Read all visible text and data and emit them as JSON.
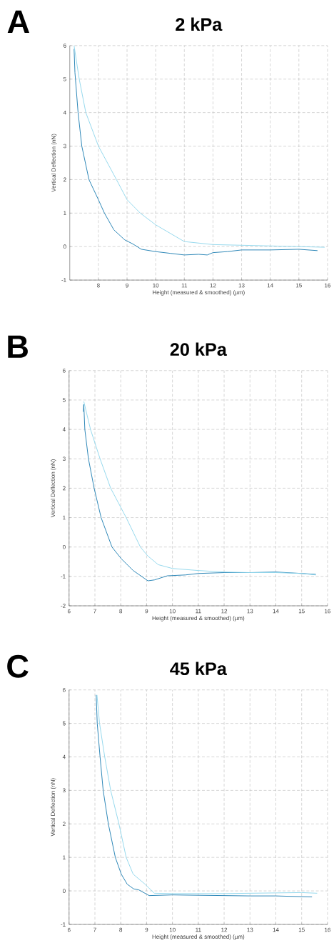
{
  "chart_data": [
    {
      "type": "line",
      "title": "2 kPa",
      "annotations": [
        "A"
      ],
      "xlabel": "Height (measured & smoothed) (µm)",
      "ylabel": "Vertical Deflection (nN)",
      "xlim": [
        7,
        16
      ],
      "xticks": [
        8,
        9,
        10,
        11,
        12,
        13,
        14,
        15,
        16
      ],
      "ylim": [
        -1,
        6
      ],
      "yticks": [
        -1,
        0,
        1,
        2,
        3,
        4,
        5,
        6
      ],
      "grid": true,
      "marker": "none",
      "line_style": "solid",
      "series": [
        {
          "color": "#1f7fb3",
          "x": [
            7.15,
            7.18,
            7.29,
            7.42,
            7.67,
            8.0,
            8.21,
            8.54,
            8.92,
            9.2,
            9.5,
            10.0,
            10.5,
            11.0,
            11.5,
            11.8,
            12.0,
            12.5,
            13.0,
            14.0,
            15.0,
            15.65
          ],
          "values": [
            5.9,
            5.2,
            4.0,
            3.0,
            2.0,
            1.4,
            1.0,
            0.5,
            0.2,
            0.08,
            -0.08,
            -0.15,
            -0.2,
            -0.25,
            -0.23,
            -0.25,
            -0.18,
            -0.15,
            -0.1,
            -0.1,
            -0.08,
            -0.12
          ]
        },
        {
          "color": "#8fd6ec",
          "x": [
            7.15,
            7.33,
            7.56,
            8.0,
            8.63,
            9.0,
            9.46,
            10.0,
            10.7,
            11.0,
            12.0,
            13.0,
            14.0,
            15.0,
            15.9
          ],
          "values": [
            6.0,
            5.0,
            4.0,
            3.0,
            2.0,
            1.4,
            1.0,
            0.65,
            0.3,
            0.15,
            0.06,
            0.04,
            0.02,
            0.0,
            -0.02
          ]
        }
      ]
    },
    {
      "type": "line",
      "title": "20 kPa",
      "annotations": [
        "B"
      ],
      "xlabel": "Height (measured & smoothed) (µm)",
      "ylabel": "Vertical Deflection (nN)",
      "xlim": [
        6,
        16
      ],
      "xticks": [
        6,
        7,
        8,
        9,
        10,
        11,
        12,
        13,
        14,
        15,
        16
      ],
      "ylim": [
        -2,
        6
      ],
      "yticks": [
        -2,
        -1,
        0,
        1,
        2,
        3,
        4,
        5,
        6
      ],
      "grid": true,
      "marker": "none",
      "line_style": "solid",
      "series": [
        {
          "color": "#1f7fb3",
          "x": [
            6.55,
            6.57,
            6.61,
            6.75,
            6.97,
            7.24,
            7.66,
            8.02,
            8.48,
            9.05,
            9.3,
            9.8,
            10.5,
            11.0,
            12.0,
            13.0,
            14.0,
            15.0,
            15.55
          ],
          "values": [
            4.6,
            4.85,
            4.0,
            3.0,
            2.0,
            1.0,
            0.0,
            -0.4,
            -0.8,
            -1.15,
            -1.12,
            -0.98,
            -0.95,
            -0.9,
            -0.87,
            -0.87,
            -0.85,
            -0.9,
            -0.93
          ]
        },
        {
          "color": "#8fd6ec",
          "x": [
            6.57,
            6.83,
            7.2,
            7.61,
            8.21,
            8.76,
            9.04,
            9.45,
            10.0,
            11.0,
            12.0,
            13.0,
            14.0,
            15.0,
            15.55
          ],
          "values": [
            4.95,
            4.0,
            3.0,
            2.0,
            1.0,
            0.0,
            -0.3,
            -0.6,
            -0.73,
            -0.8,
            -0.85,
            -0.87,
            -0.87,
            -0.9,
            -0.95
          ]
        }
      ]
    },
    {
      "type": "line",
      "title": "45 kPa",
      "annotations": [
        "C"
      ],
      "xlabel": "Height (measured & smoothed) (µm)",
      "ylabel": "Vertical Deflection (nN)",
      "xlim": [
        6,
        16
      ],
      "xticks": [
        6,
        7,
        8,
        9,
        10,
        11,
        12,
        13,
        14,
        15,
        16
      ],
      "ylim": [
        -1,
        6
      ],
      "yticks": [
        -1,
        0,
        1,
        2,
        3,
        4,
        5,
        6
      ],
      "grid": true,
      "marker": "none",
      "line_style": "solid",
      "series": [
        {
          "color": "#1f7fb3",
          "x": [
            7.05,
            7.09,
            7.2,
            7.32,
            7.52,
            7.79,
            8.02,
            8.25,
            8.5,
            8.7,
            9.1,
            10.0,
            11.0,
            12.0,
            13.0,
            14.0,
            15.4
          ],
          "values": [
            5.85,
            5.0,
            4.0,
            3.0,
            2.0,
            1.0,
            0.5,
            0.2,
            0.06,
            0.03,
            -0.14,
            -0.12,
            -0.13,
            -0.14,
            -0.15,
            -0.15,
            -0.18
          ]
        },
        {
          "color": "#8fd6ec",
          "x": [
            7.08,
            7.18,
            7.38,
            7.61,
            7.93,
            8.21,
            8.48,
            8.94,
            9.3,
            10.0,
            11.0,
            12.0,
            13.0,
            14.0,
            15.0,
            15.6
          ],
          "values": [
            5.85,
            5.0,
            4.0,
            3.0,
            2.0,
            1.0,
            0.5,
            0.2,
            -0.07,
            -0.08,
            -0.08,
            -0.08,
            -0.07,
            -0.06,
            -0.05,
            -0.07
          ]
        }
      ]
    }
  ]
}
